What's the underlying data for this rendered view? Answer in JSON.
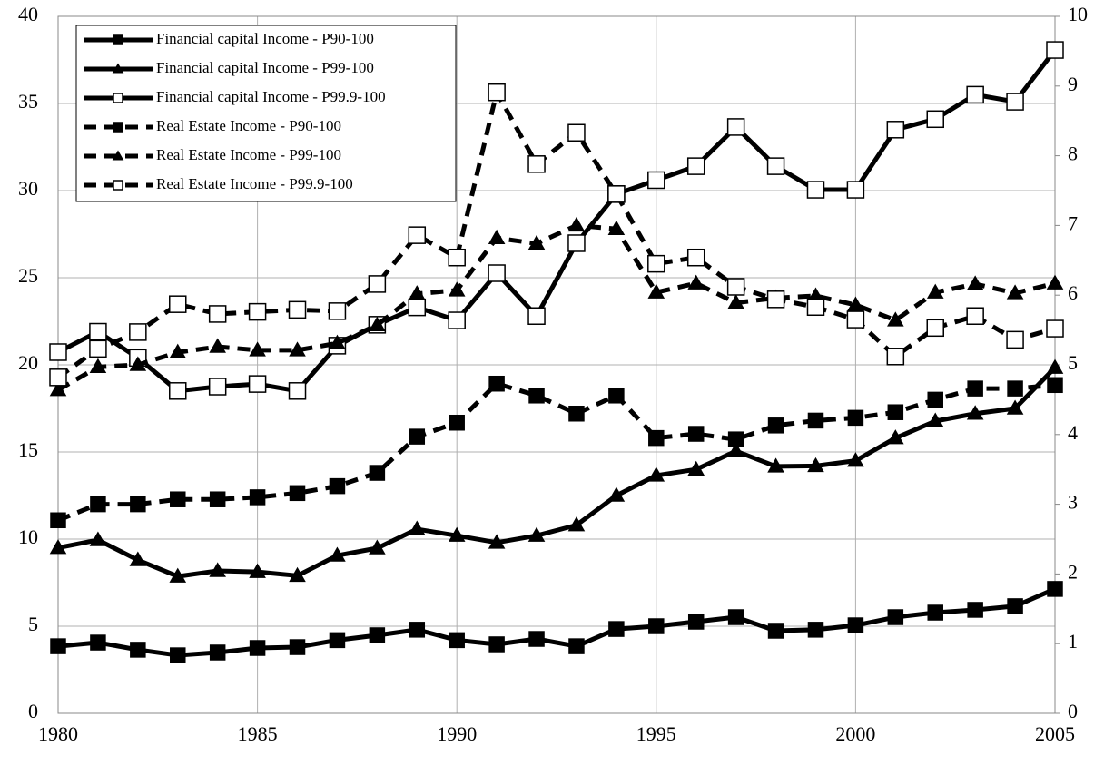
{
  "chart_data": {
    "type": "line",
    "x": [
      1980,
      1981,
      1982,
      1983,
      1984,
      1985,
      1986,
      1987,
      1988,
      1989,
      1990,
      1991,
      1992,
      1993,
      1994,
      1995,
      1996,
      1997,
      1998,
      1999,
      2000,
      2001,
      2002,
      2003,
      2004,
      2005
    ],
    "xlim": [
      1980,
      2005
    ],
    "xticks": [
      1980,
      1985,
      1990,
      1995,
      2000,
      2005
    ],
    "ylim": [
      0,
      40
    ],
    "yticks": [
      0,
      5,
      10,
      15,
      20,
      25,
      30,
      35,
      40
    ],
    "y2lim": [
      0,
      10
    ],
    "y2ticks": [
      0,
      1,
      2,
      3,
      4,
      5,
      6,
      7,
      8,
      9,
      10
    ],
    "grid": true,
    "legend": "top-left",
    "series": [
      {
        "name": "Financial capital Income - P90-100",
        "color": "#000000",
        "marker": "square",
        "dashed": false,
        "axis": "y",
        "values": [
          3.85,
          4.06,
          3.65,
          3.33,
          3.49,
          3.75,
          3.8,
          4.2,
          4.48,
          4.8,
          4.2,
          3.96,
          4.27,
          3.85,
          4.84,
          5.0,
          5.26,
          5.52,
          4.74,
          4.8,
          5.05,
          5.52,
          5.78,
          5.94,
          6.15,
          7.14
        ]
      },
      {
        "name": "Financial capital Income - P99-100",
        "color": "#000000",
        "marker": "triangle",
        "dashed": false,
        "axis": "y",
        "values": [
          9.5,
          9.95,
          8.8,
          7.86,
          8.18,
          8.12,
          7.9,
          9.06,
          9.48,
          10.57,
          10.2,
          9.8,
          10.2,
          10.8,
          12.5,
          13.65,
          14.0,
          15.05,
          14.17,
          14.2,
          14.5,
          15.8,
          16.77,
          17.2,
          17.5,
          19.84
        ]
      },
      {
        "name": "Financial capital Income - P99.9-100",
        "color": "#000000",
        "marker": "open-square",
        "dashed": false,
        "axis": "y",
        "values": [
          20.73,
          21.9,
          20.4,
          18.5,
          18.75,
          18.9,
          18.5,
          21.1,
          22.3,
          23.3,
          22.55,
          25.26,
          22.8,
          26.98,
          29.8,
          30.6,
          31.4,
          33.65,
          31.4,
          30.05,
          30.05,
          33.5,
          34.1,
          35.5,
          35.1,
          38.07
        ]
      },
      {
        "name": "Real Estate Income - P90-100",
        "color": "#000000",
        "marker": "square",
        "dashed": true,
        "axis": "y2",
        "values": [
          2.77,
          3.0,
          3.0,
          3.07,
          3.07,
          3.1,
          3.16,
          3.26,
          3.45,
          3.97,
          4.17,
          4.73,
          4.56,
          4.3,
          4.56,
          3.95,
          4.01,
          3.93,
          4.13,
          4.2,
          4.24,
          4.32,
          4.5,
          4.66,
          4.66,
          4.71
        ]
      },
      {
        "name": "Real Estate Income - P99-100",
        "color": "#000000",
        "marker": "triangle",
        "dashed": true,
        "axis": "y2",
        "values": [
          4.64,
          4.97,
          5.0,
          5.18,
          5.26,
          5.21,
          5.21,
          5.31,
          5.57,
          6.02,
          6.07,
          6.82,
          6.74,
          7.0,
          6.95,
          6.04,
          6.17,
          5.89,
          5.96,
          5.99,
          5.86,
          5.64,
          6.04,
          6.16,
          6.03,
          6.17
        ]
      },
      {
        "name": "Real Estate Income - P99.9-100",
        "color": "#000000",
        "marker": "open-square",
        "dashed": true,
        "axis": "y2",
        "values": [
          4.82,
          5.23,
          5.47,
          5.87,
          5.73,
          5.76,
          5.79,
          5.77,
          6.16,
          6.86,
          6.54,
          8.91,
          7.88,
          8.33,
          7.45,
          6.45,
          6.54,
          6.12,
          5.94,
          5.83,
          5.65,
          5.12,
          5.53,
          5.7,
          5.36,
          5.52
        ]
      }
    ]
  }
}
